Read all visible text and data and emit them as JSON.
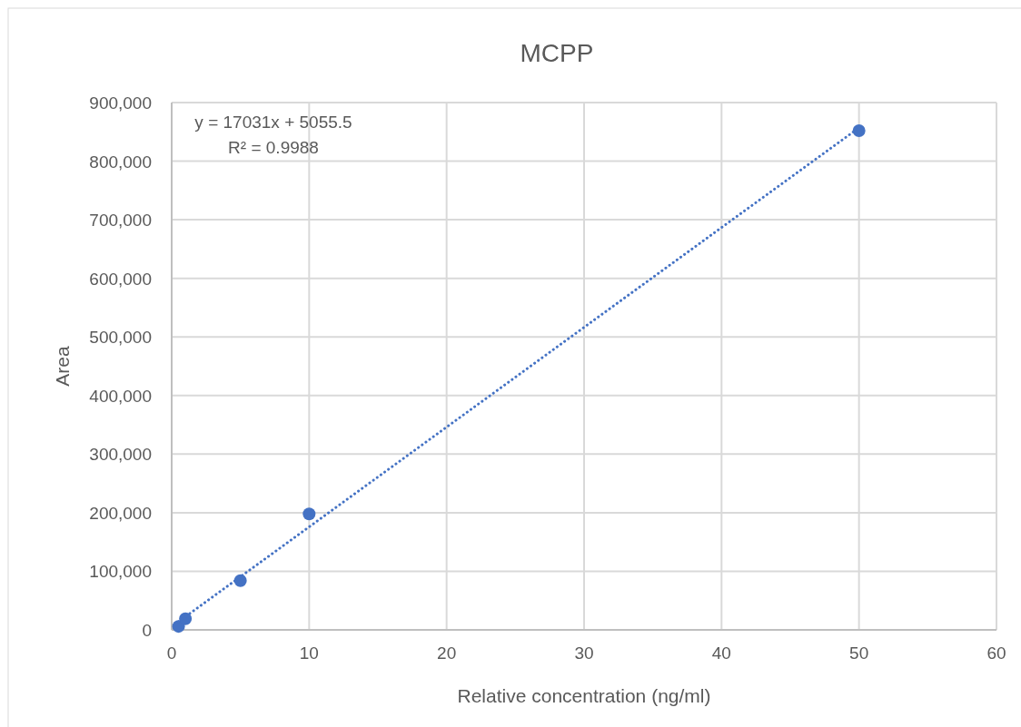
{
  "chart_data": {
    "type": "scatter",
    "title": "MCPP",
    "xlabel": "Relative concentration (ng/ml)",
    "ylabel": "Area",
    "xlim": [
      0,
      60
    ],
    "xticks": [
      0,
      10,
      20,
      30,
      40,
      50,
      60
    ],
    "ylim": [
      0,
      900000
    ],
    "yticks": [
      {
        "value": 0,
        "label": "0"
      },
      {
        "value": 100000,
        "label": "100,000"
      },
      {
        "value": 200000,
        "label": "200,000"
      },
      {
        "value": 300000,
        "label": "300,000"
      },
      {
        "value": 400000,
        "label": "400,000"
      },
      {
        "value": 500000,
        "label": "500,000"
      },
      {
        "value": 600000,
        "label": "600,000"
      },
      {
        "value": 700000,
        "label": "700,000"
      },
      {
        "value": 800000,
        "label": "800,000"
      },
      {
        "value": 900000,
        "label": "900,000"
      }
    ],
    "grid": true,
    "marker": "circle",
    "annotations": [
      "y = 17031x + 5055.5",
      "R² = 0.9988"
    ],
    "series": [
      {
        "color": "#4472c4",
        "x": [
          0.5,
          1,
          5,
          10,
          50
        ],
        "values": [
          6000,
          19000,
          84000,
          198000,
          852000
        ]
      },
      {
        "type": "line",
        "color": "#4472c4",
        "x": [
          0.5,
          50
        ],
        "values": [
          14000,
          857000
        ],
        "marker": "none",
        "line_style": "dotted"
      }
    ]
  }
}
